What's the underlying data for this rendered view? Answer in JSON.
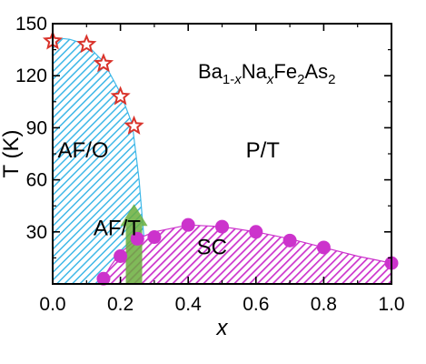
{
  "chart_data": {
    "type": "scatter",
    "title": "",
    "compound": {
      "prefix": "Ba",
      "sub1": "1-",
      "sub1_var": "x",
      "part2": "Na",
      "sub2_var": "x",
      "part3": "Fe",
      "sub3": "2",
      "part4": "As",
      "sub4": "2"
    },
    "xlabel": "x",
    "ylabel": "T (K)",
    "xlim": [
      0,
      1.0
    ],
    "ylim": [
      0,
      150
    ],
    "x_ticks": [
      0.0,
      0.2,
      0.4,
      0.6,
      0.8,
      1.0
    ],
    "x_tick_labels": [
      "0.0",
      "0.2",
      "0.4",
      "0.6",
      "0.8",
      "1.0"
    ],
    "y_ticks": [
      30,
      60,
      90,
      120,
      150
    ],
    "y_tick_labels": [
      "30",
      "60",
      "90",
      "120",
      "150"
    ],
    "grid": false,
    "series": [
      {
        "marker": "star",
        "color": "#d9332b",
        "points": [
          {
            "x": 0.0,
            "y": 140
          },
          {
            "x": 0.1,
            "y": 138
          },
          {
            "x": 0.15,
            "y": 127
          },
          {
            "x": 0.2,
            "y": 108
          },
          {
            "x": 0.24,
            "y": 91
          }
        ]
      },
      {
        "marker": "circle",
        "color": "#cc33cc",
        "points": [
          {
            "x": 0.15,
            "y": 3
          },
          {
            "x": 0.2,
            "y": 16
          },
          {
            "x": 0.25,
            "y": 26
          },
          {
            "x": 0.3,
            "y": 27
          },
          {
            "x": 0.4,
            "y": 34
          },
          {
            "x": 0.5,
            "y": 33
          },
          {
            "x": 0.6,
            "y": 30
          },
          {
            "x": 0.7,
            "y": 25
          },
          {
            "x": 0.8,
            "y": 21
          },
          {
            "x": 1.0,
            "y": 12
          }
        ]
      }
    ],
    "regions": [
      {
        "label": "AF/O",
        "x": 0.09,
        "y": 73,
        "color": "#3fb8e8"
      },
      {
        "label": "P/T",
        "x": 0.62,
        "y": 73,
        "color": "#000000"
      },
      {
        "label": "AF/T",
        "x": 0.19,
        "y": 28,
        "color": "#000000"
      },
      {
        "label": "SC",
        "x": 0.47,
        "y": 17,
        "color": "#cc33cc"
      }
    ],
    "arrow": {
      "x": 0.24,
      "y_from": 0,
      "y_to": 46,
      "color": "#6aae3c"
    },
    "colors": {
      "af_region": "#3fb8e8",
      "sc_region": "#cc33cc",
      "star_outline": "#d9332b",
      "circle_fill": "#cc33cc",
      "arrow": "#6aae3c"
    }
  }
}
